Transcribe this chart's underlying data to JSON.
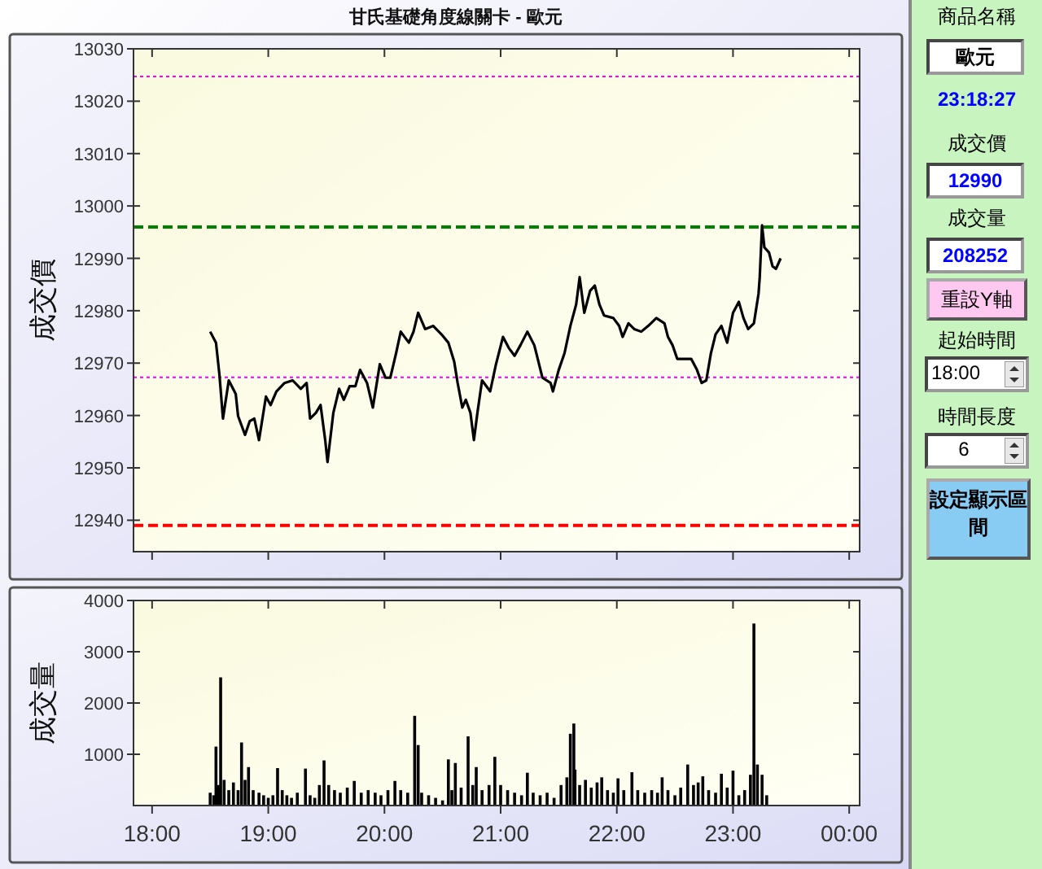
{
  "chart_data": [
    {
      "type": "line",
      "title": "甘氏基礎角度線關卡 - 歐元",
      "ylabel": "成交價",
      "line_style": "solid",
      "tick_labels": "y",
      "xlim": [
        17.84,
        24.09
      ],
      "xticks": [
        {
          "value": 18,
          "label": null
        },
        {
          "value": 19,
          "label": null
        },
        {
          "value": 20,
          "label": null
        },
        {
          "value": 21,
          "label": null
        },
        {
          "value": 22,
          "label": null
        },
        {
          "value": 23,
          "label": null
        },
        {
          "value": 24,
          "label": null
        }
      ],
      "ylim": [
        12934,
        13030
      ],
      "yticks": [
        12940,
        12950,
        12960,
        12970,
        12980,
        12990,
        13000,
        13010,
        13020,
        13030
      ],
      "ref_lines": [
        {
          "axis": "y",
          "value": 13024.7,
          "color": "#ff00ff",
          "line_style": "dotted"
        },
        {
          "axis": "y",
          "value": 12996,
          "color": "#008000",
          "line_style": "dashed"
        },
        {
          "axis": "y",
          "value": 12967.3,
          "color": "#ff00ff",
          "line_style": "dotted"
        },
        {
          "axis": "y",
          "value": 12939,
          "color": "#ff0000",
          "line_style": "dashed"
        }
      ],
      "x": [
        18.5,
        18.55,
        18.58,
        18.61,
        18.66,
        18.72,
        18.74,
        18.8,
        18.84,
        18.88,
        18.92,
        18.98,
        19.02,
        19.07,
        19.14,
        19.21,
        19.28,
        19.33,
        19.36,
        19.41,
        19.45,
        19.49,
        19.51,
        19.56,
        19.61,
        19.65,
        19.7,
        19.75,
        19.79,
        19.85,
        19.9,
        19.96,
        20.01,
        20.05,
        20.1,
        20.14,
        20.21,
        20.25,
        20.29,
        20.35,
        20.42,
        20.49,
        20.55,
        20.6,
        20.63,
        20.67,
        20.7,
        20.74,
        20.77,
        20.8,
        20.84,
        20.91,
        20.96,
        21.02,
        21.07,
        21.12,
        21.17,
        21.23,
        21.29,
        21.36,
        21.43,
        21.45,
        21.5,
        21.55,
        21.6,
        21.65,
        21.68,
        21.72,
        21.77,
        21.81,
        21.85,
        21.89,
        21.97,
        22.02,
        22.05,
        22.1,
        22.15,
        22.21,
        22.27,
        22.34,
        22.41,
        22.44,
        22.48,
        22.52,
        22.57,
        22.64,
        22.69,
        22.73,
        22.77,
        22.81,
        22.85,
        22.9,
        22.95,
        23.0,
        23.05,
        23.09,
        23.13,
        23.18,
        23.22,
        23.23,
        23.25,
        23.27,
        23.31,
        23.34,
        23.37,
        23.41
      ],
      "series": [
        {
          "color": "#000000",
          "values": [
            12976,
            12973.9,
            12967.7,
            12959.4,
            12966.7,
            12964.1,
            12959.9,
            12956.3,
            12958.9,
            12959.4,
            12955.3,
            12963.6,
            12962,
            12964.6,
            12966.2,
            12966.7,
            12965.1,
            12966.2,
            12959.4,
            12960.5,
            12962,
            12955.3,
            12951.1,
            12960.5,
            12965.1,
            12963,
            12965.6,
            12965.6,
            12968.7,
            12966.2,
            12961.5,
            12969.8,
            12967.2,
            12967.2,
            12971.9,
            12976,
            12973.9,
            12976,
            12979.6,
            12976.5,
            12977.1,
            12975.5,
            12973.9,
            12970.3,
            12966.2,
            12961.5,
            12963,
            12960.5,
            12955.3,
            12960.5,
            12966.7,
            12964.6,
            12969.8,
            12975,
            12972.9,
            12971.4,
            12973.4,
            12976,
            12973.4,
            12967.2,
            12966.2,
            12964.6,
            12968.7,
            12971.9,
            12977.1,
            12981.2,
            12986.4,
            12979.6,
            12983.8,
            12984.8,
            12981.2,
            12979.1,
            12978.6,
            12977.1,
            12975,
            12977.6,
            12976.5,
            12976,
            12977.1,
            12978.6,
            12977.6,
            12975,
            12973.4,
            12970.8,
            12970.8,
            12970.8,
            12968.7,
            12966.2,
            12966.7,
            12971.9,
            12975.5,
            12977.1,
            12973.9,
            12979.6,
            12981.7,
            12978.6,
            12976.5,
            12977.6,
            12983.3,
            12986.4,
            12996.3,
            12992.1,
            12991.1,
            12988.5,
            12988,
            12990
          ]
        }
      ]
    },
    {
      "type": "bar",
      "ylabel": "成交量",
      "color": "#000000",
      "xlim": [
        17.84,
        24.09
      ],
      "xticks": [
        {
          "value": 18,
          "label": "18:00"
        },
        {
          "value": 19,
          "label": "19:00"
        },
        {
          "value": 20,
          "label": "20:00"
        },
        {
          "value": 21,
          "label": "21:00"
        },
        {
          "value": 22,
          "label": "22:00"
        },
        {
          "value": 23,
          "label": "23:00"
        },
        {
          "value": 24,
          "label": "00:00"
        }
      ],
      "ylim": [
        0,
        4000
      ],
      "yticks": [
        1000,
        2000,
        3000,
        4000
      ],
      "x": [
        18.5,
        18.53,
        18.55,
        18.57,
        18.59,
        18.62,
        18.66,
        18.7,
        18.74,
        18.77,
        18.8,
        18.83,
        18.87,
        18.92,
        18.96,
        19.0,
        19.04,
        19.08,
        19.12,
        19.16,
        19.2,
        19.25,
        19.32,
        19.36,
        19.4,
        19.44,
        19.48,
        19.52,
        19.57,
        19.62,
        19.68,
        19.74,
        19.8,
        19.86,
        19.92,
        19.97,
        20.03,
        20.09,
        20.14,
        20.2,
        20.26,
        20.29,
        20.32,
        20.38,
        20.44,
        20.5,
        20.55,
        20.58,
        20.61,
        20.66,
        20.72,
        20.76,
        20.79,
        20.84,
        20.9,
        20.95,
        21.0,
        21.06,
        21.12,
        21.18,
        21.23,
        21.28,
        21.34,
        21.4,
        21.46,
        21.52,
        21.57,
        21.6,
        21.63,
        21.64,
        21.68,
        21.73,
        21.78,
        21.83,
        21.87,
        21.92,
        21.97,
        22.01,
        22.06,
        22.13,
        22.18,
        22.24,
        22.3,
        22.35,
        22.39,
        22.44,
        22.5,
        22.55,
        22.61,
        22.66,
        22.7,
        22.74,
        22.79,
        22.85,
        22.9,
        22.95,
        23.0,
        23.05,
        23.1,
        23.15,
        23.18,
        23.21,
        23.25,
        23.29
      ],
      "values": [
        250,
        200,
        1150,
        400,
        2500,
        500,
        300,
        450,
        300,
        1230,
        500,
        750,
        300,
        250,
        200,
        150,
        200,
        730,
        300,
        200,
        150,
        250,
        720,
        200,
        150,
        400,
        880,
        400,
        300,
        250,
        350,
        480,
        250,
        300,
        250,
        200,
        300,
        480,
        300,
        250,
        1750,
        1180,
        250,
        200,
        150,
        100,
        900,
        300,
        830,
        350,
        1350,
        400,
        750,
        300,
        400,
        950,
        400,
        300,
        250,
        200,
        640,
        250,
        200,
        250,
        150,
        400,
        550,
        1400,
        1600,
        700,
        400,
        500,
        350,
        450,
        550,
        300,
        250,
        530,
        300,
        650,
        300,
        250,
        300,
        250,
        550,
        300,
        200,
        350,
        800,
        400,
        450,
        570,
        300,
        250,
        620,
        350,
        680,
        200,
        300,
        600,
        3550,
        800,
        600,
        200
      ]
    },
    {
      "type": "other",
      "annotations": [
        "商品名稱",
        "歐元",
        "23:18:27",
        "成交價",
        "12990",
        "成交量",
        "208252",
        "重設Y軸",
        "起始時間",
        "18:00",
        "時間長度",
        "6",
        "設定顯示區間"
      ]
    }
  ]
}
